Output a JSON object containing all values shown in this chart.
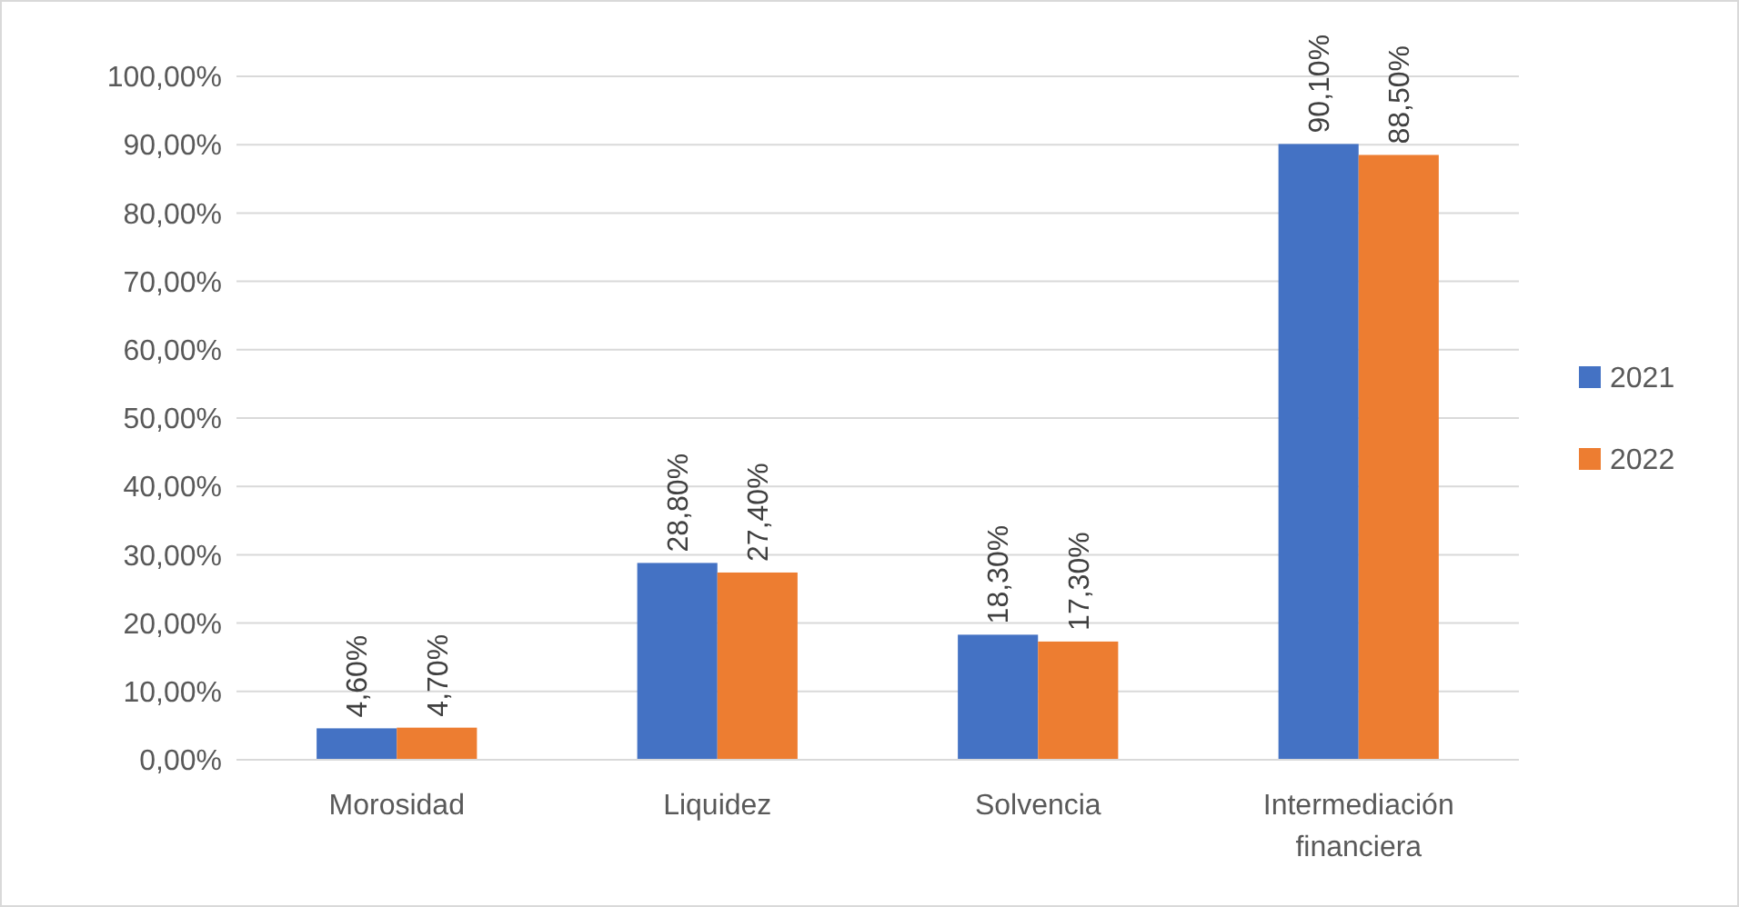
{
  "chart_data": {
    "type": "bar",
    "categories": [
      "Morosidad",
      "Liquidez",
      "Solvencia",
      "Intermediación financiera"
    ],
    "series": [
      {
        "name": "2021",
        "color": "#4472c4",
        "values": [
          4.6,
          28.8,
          18.3,
          90.1
        ],
        "value_labels": [
          "4,60%",
          "28,80%",
          "18,30%",
          "90,10%"
        ]
      },
      {
        "name": "2022",
        "color": "#ed7d31",
        "values": [
          4.7,
          27.4,
          17.3,
          88.5
        ],
        "value_labels": [
          "4,70%",
          "27,40%",
          "17,30%",
          "88,50%"
        ]
      }
    ],
    "ylim": [
      0,
      100
    ],
    "yticks": [
      {
        "value": 0,
        "label": "0,00%"
      },
      {
        "value": 10,
        "label": "10,00%"
      },
      {
        "value": 20,
        "label": "20,00%"
      },
      {
        "value": 30,
        "label": "30,00%"
      },
      {
        "value": 40,
        "label": "40,00%"
      },
      {
        "value": 50,
        "label": "50,00%"
      },
      {
        "value": 60,
        "label": "60,00%"
      },
      {
        "value": 70,
        "label": "70,00%"
      },
      {
        "value": 80,
        "label": "80,00%"
      },
      {
        "value": 90,
        "label": "90,00%"
      },
      {
        "value": 100,
        "label": "100,00%"
      }
    ],
    "grid": "y",
    "legend": "right"
  }
}
